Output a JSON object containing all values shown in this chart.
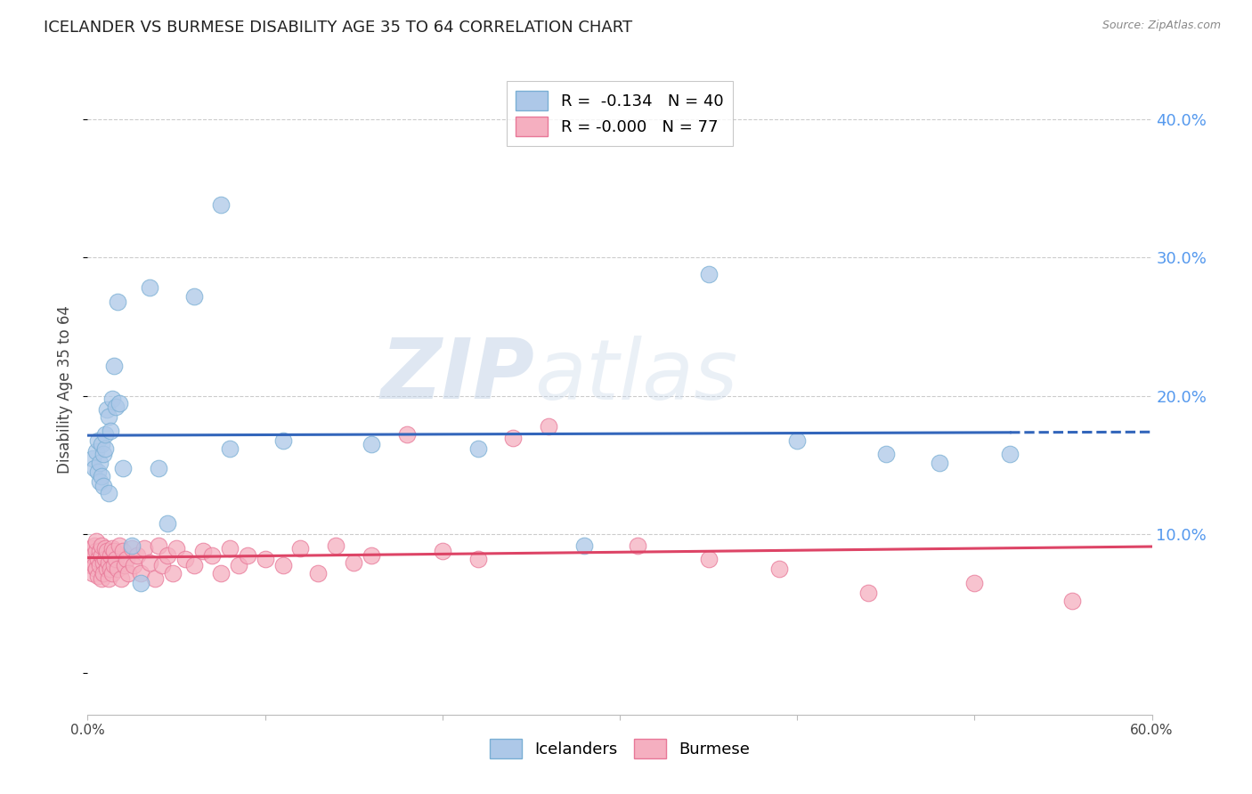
{
  "title": "ICELANDER VS BURMESE DISABILITY AGE 35 TO 64 CORRELATION CHART",
  "source": "Source: ZipAtlas.com",
  "ylabel": "Disability Age 35 to 64",
  "xlim": [
    0.0,
    0.6
  ],
  "ylim": [
    -0.03,
    0.44
  ],
  "yticks_right": [
    0.1,
    0.2,
    0.3,
    0.4
  ],
  "ytick_labels_right": [
    "10.0%",
    "20.0%",
    "30.0%",
    "40.0%"
  ],
  "xticks": [
    0.0,
    0.1,
    0.2,
    0.3,
    0.4,
    0.5,
    0.6
  ],
  "xtick_labels": [
    "0.0%",
    "",
    "",
    "",
    "",
    "",
    "60.0%"
  ],
  "grid_color": "#cccccc",
  "background_color": "#ffffff",
  "icelander_color": "#adc8e8",
  "icelander_edge_color": "#7aafd4",
  "burmese_color": "#f5afc0",
  "burmese_edge_color": "#e87898",
  "icelander_line_color": "#3366bb",
  "burmese_line_color": "#dd4466",
  "legend_r_ice": "-0.134",
  "legend_n_ice": "40",
  "legend_r_bur": "-0.000",
  "legend_n_bur": "77",
  "watermark_zip": "ZIP",
  "watermark_atlas": "atlas",
  "ice_line_solid_end": 0.52,
  "icelanders_x": [
    0.003,
    0.004,
    0.005,
    0.006,
    0.006,
    0.007,
    0.007,
    0.008,
    0.008,
    0.009,
    0.009,
    0.01,
    0.01,
    0.011,
    0.012,
    0.012,
    0.013,
    0.014,
    0.015,
    0.016,
    0.017,
    0.018,
    0.02,
    0.025,
    0.03,
    0.035,
    0.04,
    0.045,
    0.06,
    0.075,
    0.08,
    0.11,
    0.16,
    0.22,
    0.28,
    0.35,
    0.4,
    0.45,
    0.48,
    0.52
  ],
  "icelanders_y": [
    0.155,
    0.148,
    0.16,
    0.145,
    0.168,
    0.152,
    0.138,
    0.142,
    0.165,
    0.158,
    0.135,
    0.162,
    0.172,
    0.19,
    0.185,
    0.13,
    0.175,
    0.198,
    0.222,
    0.192,
    0.268,
    0.195,
    0.148,
    0.092,
    0.065,
    0.278,
    0.148,
    0.108,
    0.272,
    0.338,
    0.162,
    0.168,
    0.165,
    0.162,
    0.092,
    0.288,
    0.168,
    0.158,
    0.152,
    0.158
  ],
  "burmese_x": [
    0.001,
    0.002,
    0.002,
    0.003,
    0.003,
    0.004,
    0.004,
    0.005,
    0.005,
    0.005,
    0.006,
    0.006,
    0.007,
    0.007,
    0.008,
    0.008,
    0.008,
    0.009,
    0.009,
    0.01,
    0.01,
    0.011,
    0.011,
    0.012,
    0.012,
    0.013,
    0.013,
    0.014,
    0.014,
    0.015,
    0.015,
    0.016,
    0.017,
    0.018,
    0.019,
    0.02,
    0.021,
    0.022,
    0.023,
    0.025,
    0.026,
    0.028,
    0.03,
    0.032,
    0.035,
    0.038,
    0.04,
    0.042,
    0.045,
    0.048,
    0.05,
    0.055,
    0.06,
    0.065,
    0.07,
    0.075,
    0.08,
    0.085,
    0.09,
    0.1,
    0.11,
    0.12,
    0.13,
    0.14,
    0.15,
    0.16,
    0.18,
    0.2,
    0.22,
    0.24,
    0.26,
    0.31,
    0.35,
    0.39,
    0.44,
    0.5,
    0.555
  ],
  "burmese_y": [
    0.082,
    0.078,
    0.09,
    0.085,
    0.072,
    0.092,
    0.078,
    0.088,
    0.075,
    0.095,
    0.082,
    0.07,
    0.088,
    0.078,
    0.085,
    0.068,
    0.092,
    0.08,
    0.072,
    0.09,
    0.082,
    0.075,
    0.088,
    0.08,
    0.068,
    0.085,
    0.075,
    0.09,
    0.072,
    0.088,
    0.078,
    0.082,
    0.075,
    0.092,
    0.068,
    0.088,
    0.078,
    0.082,
    0.072,
    0.09,
    0.078,
    0.085,
    0.072,
    0.09,
    0.08,
    0.068,
    0.092,
    0.078,
    0.085,
    0.072,
    0.09,
    0.082,
    0.078,
    0.088,
    0.085,
    0.072,
    0.09,
    0.078,
    0.085,
    0.082,
    0.078,
    0.09,
    0.072,
    0.092,
    0.08,
    0.085,
    0.172,
    0.088,
    0.082,
    0.17,
    0.178,
    0.092,
    0.082,
    0.075,
    0.058,
    0.065,
    0.052
  ]
}
